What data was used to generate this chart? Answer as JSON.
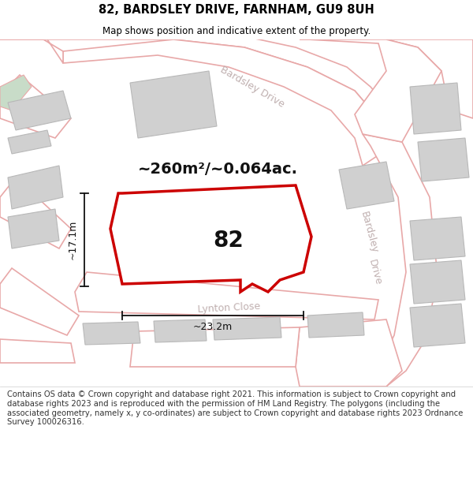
{
  "title": "82, BARDSLEY DRIVE, FARNHAM, GU9 8UH",
  "subtitle": "Map shows position and indicative extent of the property.",
  "area_label": "~260m²/~0.064ac.",
  "property_number": "82",
  "dim_width": "~23.2m",
  "dim_height": "~17.1m",
  "map_bg": "#f0ebe8",
  "road_fill": "#ffffff",
  "road_stroke": "#e8a8a8",
  "road_lw": 1.2,
  "building_fill": "#d0d0d0",
  "building_stroke": "#b8b8b8",
  "building_lw": 0.8,
  "property_fill": "#ffffff",
  "property_stroke": "#cc0000",
  "property_lw": 2.5,
  "house_fill": "#d0d0d0",
  "house_stroke": "#b0b0b0",
  "green_fill": "#c8dcc8",
  "street_color": "#c0b0b0",
  "dim_color": "#111111",
  "area_color": "#111111",
  "footer_text": "Contains OS data © Crown copyright and database right 2021. This information is subject to Crown copyright and database rights 2023 and is reproduced with the permission of HM Land Registry. The polygons (including the associated geometry, namely x, y co-ordinates) are subject to Crown copyright and database rights 2023 Ordnance Survey 100026316.",
  "title_fontsize": 10.5,
  "subtitle_fontsize": 8.5,
  "footer_fontsize": 7.2,
  "area_fontsize": 14,
  "prop_num_fontsize": 20,
  "street_fontsize": 9,
  "dim_fontsize": 9
}
